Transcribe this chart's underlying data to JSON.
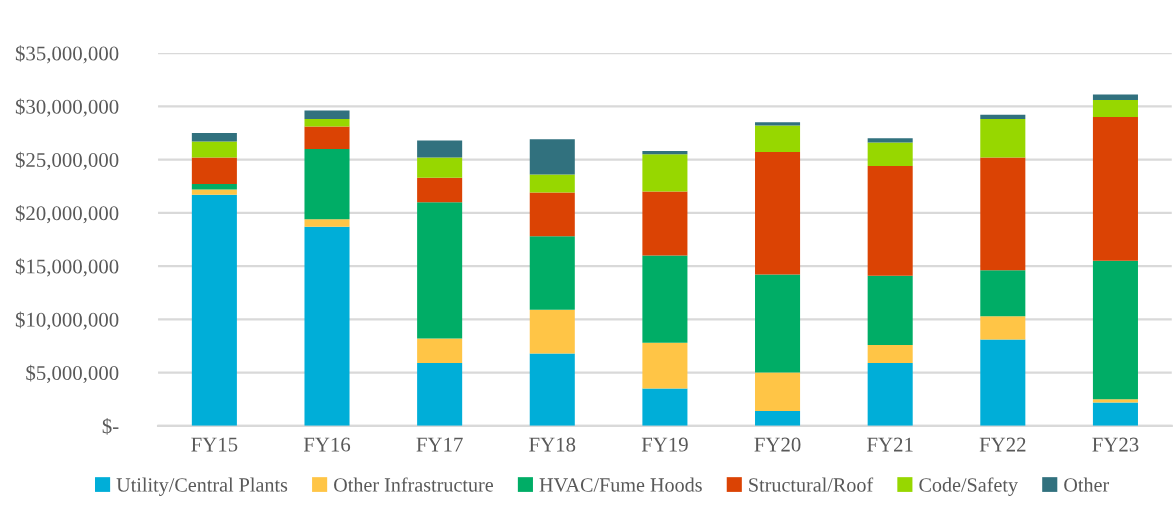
{
  "chart_data": {
    "type": "bar",
    "stacked": true,
    "categories": [
      "FY15",
      "FY16",
      "FY17",
      "FY18",
      "FY19",
      "FY20",
      "FY21",
      "FY22",
      "FY23"
    ],
    "series": [
      {
        "name": "Utility/Central Plants",
        "color": "#00aed8",
        "values": [
          21700000,
          18700000,
          5900000,
          6800000,
          3500000,
          1400000,
          5900000,
          8100000,
          2200000
        ]
      },
      {
        "name": "Other Infrastructure",
        "color": "#ffc546",
        "values": [
          500000,
          700000,
          2300000,
          4100000,
          4300000,
          3600000,
          1700000,
          2200000,
          300000
        ]
      },
      {
        "name": "HVAC/Fume Hoods",
        "color": "#00ad66",
        "values": [
          500000,
          6600000,
          12800000,
          6900000,
          8200000,
          9200000,
          6500000,
          4300000,
          13000000
        ]
      },
      {
        "name": "Structural/Roof",
        "color": "#db4304",
        "values": [
          2500000,
          2100000,
          2300000,
          4100000,
          6000000,
          11500000,
          10300000,
          10600000,
          13500000
        ]
      },
      {
        "name": "Code/Safety",
        "color": "#97d700",
        "values": [
          1500000,
          700000,
          1900000,
          1700000,
          3500000,
          2500000,
          2200000,
          3600000,
          1600000
        ]
      },
      {
        "name": "Other",
        "color": "#31717e",
        "values": [
          800000,
          800000,
          1600000,
          3300000,
          300000,
          300000,
          400000,
          400000,
          500000
        ]
      }
    ],
    "ylim": [
      0,
      35000000
    ],
    "yticks": [
      {
        "value": 0,
        "label": "$-"
      },
      {
        "value": 5000000,
        "label": "$5,000,000"
      },
      {
        "value": 10000000,
        "label": "$10,000,000"
      },
      {
        "value": 15000000,
        "label": "$15,000,000"
      },
      {
        "value": 20000000,
        "label": "$20,000,000"
      },
      {
        "value": 25000000,
        "label": "$25,000,000"
      },
      {
        "value": 30000000,
        "label": "$30,000,000"
      },
      {
        "value": 35000000,
        "label": "$35,000,000"
      }
    ],
    "grid": "y",
    "legend": "bottom"
  }
}
